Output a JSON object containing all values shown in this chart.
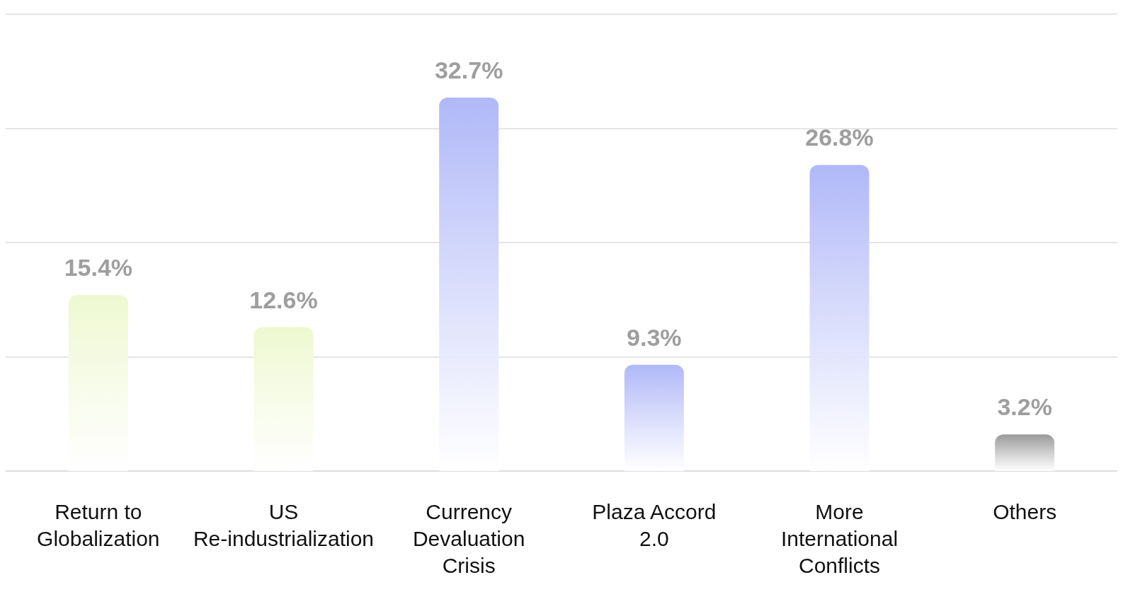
{
  "chart_data": {
    "type": "bar",
    "categories": [
      "Return to\nGlobalization",
      "US\nRe-industrialization",
      "Currency\nDevaluation\nCrisis",
      "Plaza Accord\n2.0",
      "More\nInternational\nConflicts",
      "Others"
    ],
    "values": [
      15.4,
      12.6,
      32.7,
      9.3,
      26.8,
      3.2
    ],
    "value_labels": [
      "15.4%",
      "12.6%",
      "32.7%",
      "9.3%",
      "26.8%",
      "3.2%"
    ],
    "colors": [
      "#eef8d0",
      "#eef8d0",
      "#b0b8f8",
      "#b0b8f8",
      "#b0b8f8",
      "#9a9a9a"
    ],
    "ylim": [
      0,
      40
    ],
    "yticks": [
      {
        "value": 0,
        "label": null
      },
      {
        "value": 10,
        "label": null
      },
      {
        "value": 20,
        "label": null
      },
      {
        "value": 30,
        "label": null
      },
      {
        "value": 40,
        "label": null
      }
    ],
    "grid": "y",
    "tick_labels": "x"
  }
}
